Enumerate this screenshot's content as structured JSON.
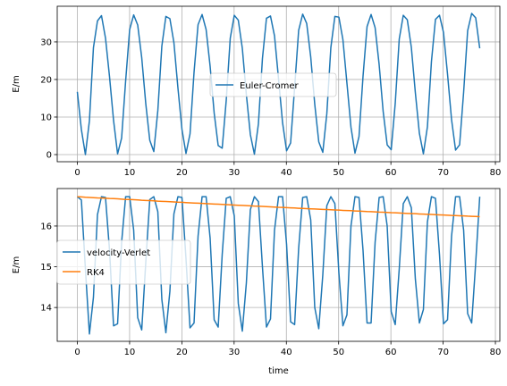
{
  "chart_data": [
    {
      "type": "line",
      "ylabel": "E/m",
      "xlabel": "",
      "xlim": [
        -3.85,
        80.85
      ],
      "ylim": [
        -1.9,
        39.5
      ],
      "xticks": [
        0,
        10,
        20,
        30,
        40,
        50,
        60,
        70,
        80
      ],
      "yticks": [
        0,
        10,
        20,
        30
      ],
      "grid": true,
      "legend": "center-right",
      "series": [
        {
          "name": "Euler-Cromer",
          "color": "#1f77b4",
          "x": [
            0,
            0.77,
            1.54,
            2.31,
            3.08,
            3.85,
            4.62,
            5.39,
            6.16,
            6.93,
            7.7,
            8.47,
            9.24,
            10.01,
            10.78,
            11.55,
            12.32,
            13.09,
            13.86,
            14.63,
            15.4,
            16.17,
            16.94,
            17.71,
            18.48,
            19.25,
            20.02,
            20.79,
            21.56,
            22.33,
            23.1,
            23.87,
            24.64,
            25.41,
            26.18,
            26.95,
            27.72,
            28.49,
            29.26,
            30.03,
            30.8,
            31.57,
            32.34,
            33.11,
            33.88,
            34.65,
            35.42,
            36.19,
            36.96,
            37.73,
            38.5,
            39.27,
            40.04,
            40.81,
            41.58,
            42.35,
            43.12,
            43.89,
            44.66,
            45.43,
            46.2,
            46.97,
            47.74,
            48.51,
            49.28,
            50.05,
            50.82,
            51.59,
            52.36,
            53.13,
            53.9,
            54.67,
            55.44,
            56.21,
            56.98,
            57.75,
            58.52,
            59.29,
            60.06,
            60.83,
            61.6,
            62.37,
            63.14,
            63.91,
            64.68,
            65.45,
            66.22,
            66.99,
            67.76,
            68.53,
            69.3,
            70.07,
            70.84,
            71.61,
            72.38,
            73.15,
            73.92,
            74.69,
            75.46,
            76.23,
            77
          ],
          "y": [
            16.7,
            6.7,
            0.0,
            9.0,
            28.5,
            35.6,
            37.0,
            31.0,
            20.7,
            9.1,
            0.2,
            4.4,
            19.6,
            33.3,
            37.2,
            34.5,
            25.8,
            13.6,
            3.8,
            0.8,
            11.7,
            28.9,
            36.8,
            36.2,
            29.8,
            17.7,
            6.7,
            0.3,
            5.5,
            21.9,
            34.6,
            37.3,
            33.3,
            23.5,
            11.1,
            2.4,
            1.7,
            14.4,
            31.0,
            37.1,
            35.8,
            28.3,
            16.0,
            5.3,
            0.1,
            8.2,
            25.6,
            36.3,
            36.9,
            31.6,
            20.2,
            8.5,
            1.0,
            3.1,
            17.9,
            33.1,
            37.4,
            34.9,
            26.0,
            13.4,
            3.4,
            0.6,
            10.9,
            28.5,
            36.8,
            36.6,
            30.6,
            19.0,
            7.3,
            0.4,
            4.8,
            20.9,
            34.1,
            37.3,
            33.8,
            24.0,
            11.5,
            2.6,
            1.3,
            13.6,
            30.8,
            37.1,
            35.9,
            28.6,
            16.5,
            5.7,
            0.2,
            7.4,
            24.8,
            36.0,
            37.1,
            32.5,
            21.4,
            9.3,
            1.2,
            2.6,
            16.6,
            33.0,
            37.6,
            36.4,
            28.3
          ]
        }
      ]
    },
    {
      "type": "line",
      "ylabel": "E/m",
      "xlabel": "time",
      "xlim": [
        -3.85,
        80.85
      ],
      "ylim": [
        13.17,
        16.92
      ],
      "xticks": [
        0,
        10,
        20,
        30,
        40,
        50,
        60,
        70,
        80
      ],
      "yticks": [
        14,
        15,
        16
      ],
      "grid": true,
      "legend": "center-left",
      "series": [
        {
          "name": "velocity-Verlet",
          "color": "#1f77b4",
          "x": [
            0,
            0.77,
            1.54,
            2.31,
            3.08,
            3.85,
            4.62,
            5.39,
            6.16,
            6.93,
            7.7,
            8.47,
            9.24,
            10.01,
            10.78,
            11.55,
            12.32,
            13.09,
            13.86,
            14.63,
            15.4,
            16.17,
            16.94,
            17.71,
            18.48,
            19.25,
            20.02,
            20.79,
            21.56,
            22.33,
            23.1,
            23.87,
            24.64,
            25.41,
            26.18,
            26.95,
            27.72,
            28.49,
            29.26,
            30.03,
            30.8,
            31.57,
            32.34,
            33.11,
            33.88,
            34.65,
            35.42,
            36.19,
            36.96,
            37.73,
            38.5,
            39.27,
            40.04,
            40.81,
            41.58,
            42.35,
            43.12,
            43.89,
            44.66,
            45.43,
            46.2,
            46.97,
            47.74,
            48.51,
            49.28,
            50.05,
            50.82,
            51.59,
            52.36,
            53.13,
            53.9,
            54.67,
            55.44,
            56.21,
            56.98,
            57.75,
            58.52,
            59.29,
            60.06,
            60.83,
            61.6,
            62.37,
            63.14,
            63.91,
            64.68,
            65.45,
            66.22,
            66.99,
            67.76,
            68.53,
            69.3,
            70.07,
            70.84,
            71.61,
            72.38,
            73.15,
            73.92,
            74.69,
            75.46,
            76.23,
            77
          ],
          "y": [
            16.72,
            16.64,
            14.95,
            13.35,
            14.25,
            16.28,
            16.72,
            16.7,
            15.4,
            13.55,
            13.6,
            15.6,
            16.72,
            16.72,
            15.9,
            13.75,
            13.45,
            15.1,
            16.65,
            16.72,
            16.35,
            14.2,
            13.38,
            14.4,
            16.3,
            16.72,
            16.7,
            15.2,
            13.5,
            13.62,
            15.75,
            16.72,
            16.72,
            15.7,
            13.7,
            13.52,
            15.3,
            16.68,
            16.72,
            16.25,
            14.1,
            13.42,
            14.6,
            16.4,
            16.72,
            16.6,
            15.0,
            13.52,
            13.72,
            15.9,
            16.72,
            16.72,
            15.55,
            13.65,
            13.58,
            15.45,
            16.7,
            16.72,
            16.15,
            14.0,
            13.48,
            14.8,
            16.5,
            16.72,
            16.55,
            14.85,
            13.55,
            13.82,
            16.0,
            16.72,
            16.7,
            15.4,
            13.62,
            13.62,
            15.6,
            16.7,
            16.72,
            16.0,
            13.9,
            13.58,
            14.95,
            16.55,
            16.72,
            16.45,
            14.7,
            13.62,
            13.95,
            16.1,
            16.72,
            16.68,
            15.3,
            13.6,
            13.7,
            15.75,
            16.72,
            16.72,
            15.9,
            13.85,
            13.62,
            15.1,
            16.72
          ]
        },
        {
          "name": "RK4",
          "color": "#ff7f0e",
          "x": [
            0,
            0.77,
            1.54,
            2.31,
            3.08,
            3.85,
            4.62,
            5.39,
            6.16,
            6.93,
            7.7,
            8.47,
            9.24,
            10.01,
            10.78,
            11.55,
            12.32,
            13.09,
            13.86,
            14.63,
            15.4,
            16.17,
            16.94,
            17.71,
            18.48,
            19.25,
            20.02,
            20.79,
            21.56,
            22.33,
            23.1,
            23.87,
            24.64,
            25.41,
            26.18,
            26.95,
            27.72,
            28.49,
            29.26,
            30.03,
            30.8,
            31.57,
            32.34,
            33.11,
            33.88,
            34.65,
            35.42,
            36.19,
            36.96,
            37.73,
            38.5,
            39.27,
            40.04,
            40.81,
            41.58,
            42.35,
            43.12,
            43.89,
            44.66,
            45.43,
            46.2,
            46.97,
            47.74,
            48.51,
            49.28,
            50.05,
            50.82,
            51.59,
            52.36,
            53.13,
            53.9,
            54.67,
            55.44,
            56.21,
            56.98,
            57.75,
            58.52,
            59.29,
            60.06,
            60.83,
            61.6,
            62.37,
            63.14,
            63.91,
            64.68,
            65.45,
            66.22,
            66.99,
            67.76,
            68.53,
            69.3,
            70.07,
            70.84,
            71.61,
            72.38,
            73.15,
            73.92,
            74.69,
            75.46,
            76.23,
            77
          ],
          "y": [
            16.72,
            16.715,
            16.705,
            16.7,
            16.695,
            16.69,
            16.688,
            16.682,
            16.675,
            16.672,
            16.668,
            16.66,
            16.652,
            16.65,
            16.645,
            16.64,
            16.632,
            16.628,
            16.625,
            16.618,
            16.61,
            16.606,
            16.602,
            16.596,
            16.59,
            16.585,
            16.582,
            16.576,
            16.57,
            16.565,
            16.56,
            16.556,
            16.55,
            16.545,
            16.54,
            16.535,
            16.53,
            16.526,
            16.52,
            16.515,
            16.51,
            16.505,
            16.5,
            16.496,
            16.49,
            16.486,
            16.48,
            16.476,
            16.47,
            16.466,
            16.46,
            16.456,
            16.452,
            16.446,
            16.442,
            16.436,
            16.432,
            16.428,
            16.422,
            16.418,
            16.412,
            16.408,
            16.404,
            16.398,
            16.394,
            16.39,
            16.384,
            16.38,
            16.376,
            16.37,
            16.366,
            16.362,
            16.356,
            16.352,
            16.348,
            16.342,
            16.338,
            16.334,
            16.328,
            16.324,
            16.32,
            16.315,
            16.31,
            16.306,
            16.302,
            16.296,
            16.292,
            16.288,
            16.284,
            16.278,
            16.274,
            16.27,
            16.266,
            16.26,
            16.256,
            16.252,
            16.248,
            16.242,
            16.238,
            16.234,
            16.23
          ]
        }
      ]
    }
  ]
}
